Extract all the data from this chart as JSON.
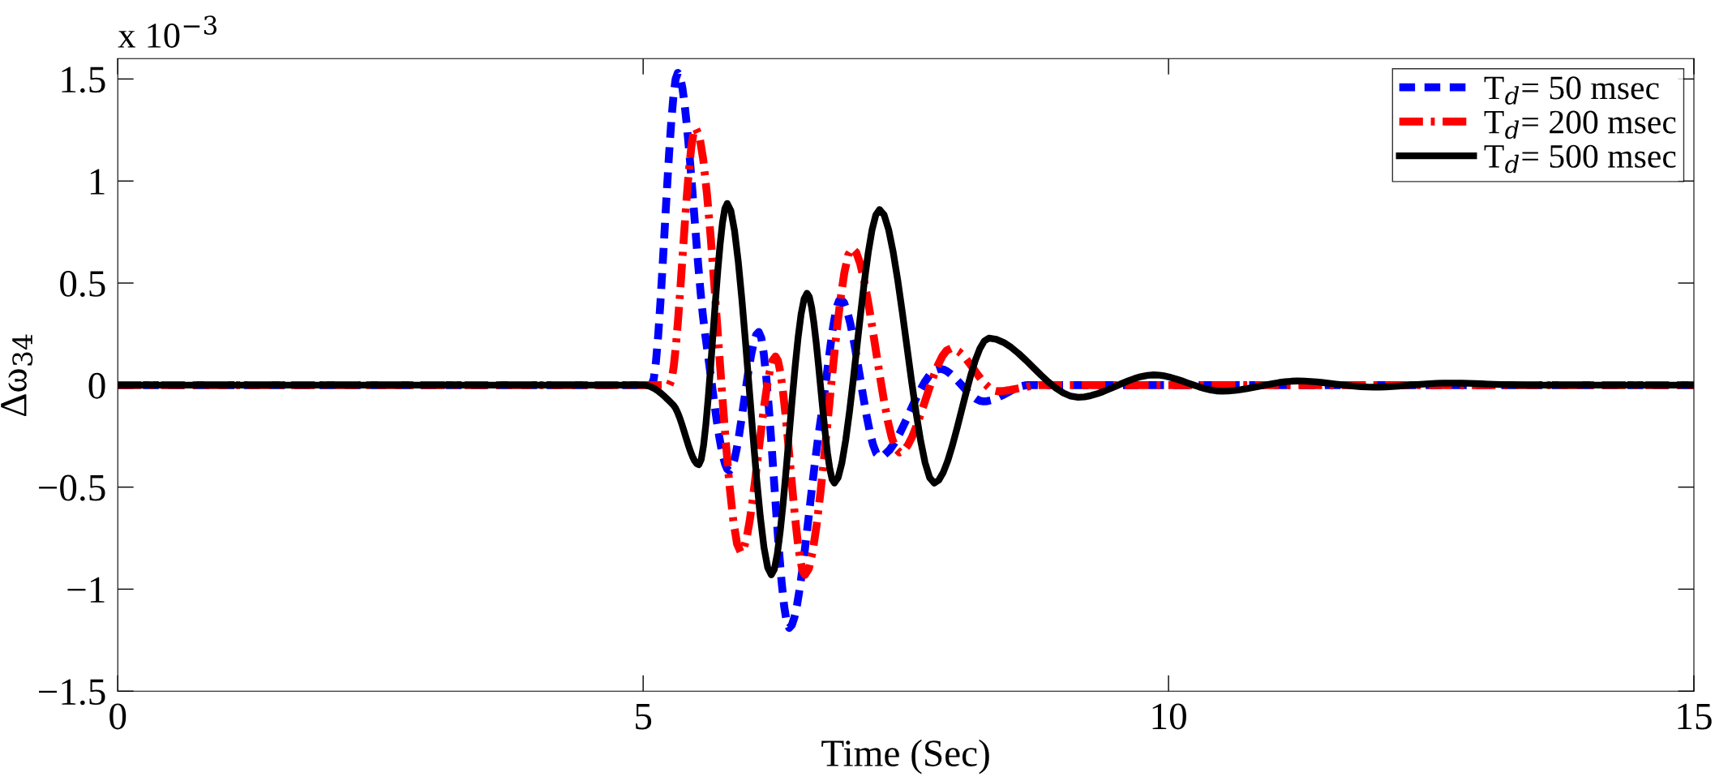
{
  "chart_data": {
    "type": "line",
    "xlabel": "Time (Sec)",
    "ylabel": "Δω$_{34}$",
    "annotations": [
      "x 10$^{−3}$"
    ],
    "xlim": [
      0,
      15
    ],
    "xticks": [
      0,
      5,
      10,
      15
    ],
    "ylim": [
      -1.5,
      1.6
    ],
    "yticks": [
      {
        "value": -1.5,
        "label": "−1.5"
      },
      {
        "value": -1,
        "label": "−1"
      },
      {
        "value": -0.5,
        "label": "−0.5"
      },
      0,
      0.5,
      1,
      1.5
    ],
    "grid": false,
    "legend": "top right",
    "marker": "none",
    "series": [
      {
        "name": "T$_{d}$= 50 msec",
        "color": "#0000ff",
        "line_style": "dashed",
        "x": [
          0,
          5.08,
          5.33,
          5.59,
          5.82,
          6.1,
          6.39,
          6.69,
          6.88,
          7.25,
          7.82,
          8.24,
          8.67,
          15
        ],
        "values": [
          0,
          0,
          1.53,
          0.25,
          -0.42,
          0.26,
          -1.19,
          -0.17,
          0.42,
          -0.35,
          0.08,
          -0.08,
          0,
          0
        ]
      },
      {
        "name": "T$_{d}$= 200 msec",
        "color": "#ff0000",
        "line_style": "dashdot",
        "x": [
          0,
          5.25,
          5.5,
          5.93,
          6.26,
          6.54,
          6.99,
          7.44,
          7.93,
          8.37,
          8.8,
          15
        ],
        "values": [
          0,
          0,
          1.26,
          -0.82,
          0.14,
          -0.93,
          0.67,
          -0.33,
          0.18,
          -0.03,
          0,
          0
        ]
      },
      {
        "name": "T$_{d}$= 500 msec",
        "color": "#000000",
        "line_style": "solid",
        "x": [
          0,
          5.0,
          5.29,
          5.53,
          5.8,
          6.22,
          6.56,
          6.82,
          7.25,
          7.77,
          8.29,
          9.14,
          9.86,
          10.51,
          11.23,
          11.95,
          12.67,
          13.4,
          15
        ],
        "values": [
          0,
          0,
          -0.1,
          -0.39,
          0.89,
          -0.93,
          0.45,
          -0.48,
          0.86,
          -0.48,
          0.23,
          -0.06,
          0.05,
          -0.03,
          0.02,
          -0.01,
          0.01,
          0,
          0
        ]
      }
    ]
  }
}
